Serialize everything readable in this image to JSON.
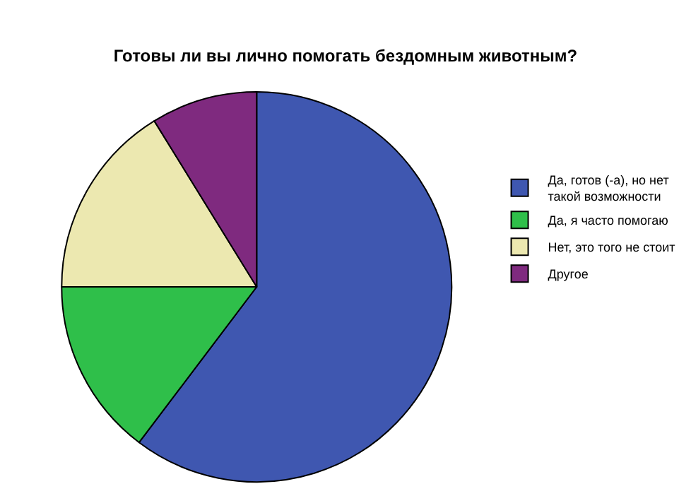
{
  "chart_data": {
    "type": "pie",
    "title": "Готовы ли вы лично помогать бездомным животным?",
    "categories": [
      "Да, готов (-а), но нет такой возможности",
      "Да, я часто помогаю",
      "Нет, это того не стоит",
      "Другое"
    ],
    "values": [
      60.3,
      14.7,
      16.2,
      8.8
    ],
    "colors": [
      "#3f57b0",
      "#2fbf4a",
      "#ece8b0",
      "#7f2a7f"
    ],
    "legend": "top right"
  }
}
